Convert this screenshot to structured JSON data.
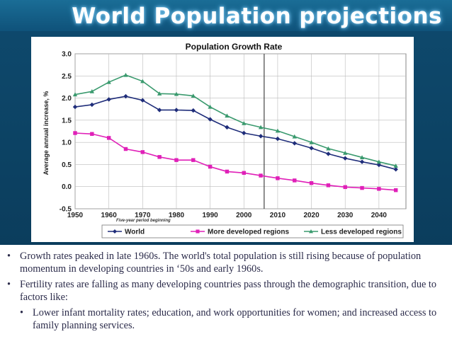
{
  "slide": {
    "title": "World Population projections"
  },
  "bullets": [
    {
      "text": "Growth rates peaked in late 1960s. The world's total population is still rising because of population momentum in developing countries in ‘50s and early 1960s.",
      "level": 1
    },
    {
      "text": "Fertility rates are falling as many developing countries pass through the demographic transition, due to factors like:",
      "level": 1
    },
    {
      "text": "Lower infant mortality rates; education, and work opportunities for women; and increased access to family planning services.",
      "level": 2
    }
  ],
  "colors": {
    "world": "#1f2d7a",
    "more_developed": "#e020b8",
    "less_developed": "#3a9a6e",
    "background": "#0e4a6e"
  },
  "chart_data": {
    "type": "line",
    "title": "Population Growth Rate",
    "xlabel": "Five-year period beginning",
    "ylabel": "Average annual increase, %",
    "x": [
      1950,
      1955,
      1960,
      1965,
      1970,
      1975,
      1980,
      1985,
      1990,
      1995,
      2000,
      2005,
      2010,
      2015,
      2020,
      2025,
      2030,
      2035,
      2040,
      2045
    ],
    "xticks": [
      "1950",
      "1960",
      "1970",
      "1980",
      "1990",
      "2000",
      "2010",
      "2020",
      "2030",
      "2040"
    ],
    "yticks": [
      "3.0",
      "2.5",
      "2.0",
      "1.5",
      "1.0",
      "0.5",
      "0.0",
      "-0.5"
    ],
    "xlim": [
      1950,
      2048
    ],
    "ylim": [
      -0.5,
      3.0
    ],
    "grid": true,
    "vertical_marker_x": 2006,
    "legend_position": "bottom",
    "series": [
      {
        "name": "World",
        "color": "#1f2d7a",
        "marker": "diamond",
        "values": [
          1.8,
          1.85,
          1.97,
          2.04,
          1.95,
          1.73,
          1.73,
          1.72,
          1.52,
          1.34,
          1.21,
          1.14,
          1.08,
          0.98,
          0.87,
          0.74,
          0.64,
          0.56,
          0.49,
          0.39
        ]
      },
      {
        "name": "More developed regions",
        "color": "#e020b8",
        "marker": "square",
        "values": [
          1.21,
          1.19,
          1.1,
          0.85,
          0.78,
          0.67,
          0.6,
          0.6,
          0.45,
          0.34,
          0.31,
          0.25,
          0.19,
          0.14,
          0.08,
          0.03,
          -0.01,
          -0.03,
          -0.05,
          -0.08
        ]
      },
      {
        "name": "Less developed regions",
        "color": "#3a9a6e",
        "marker": "triangle",
        "values": [
          2.08,
          2.15,
          2.36,
          2.52,
          2.38,
          2.1,
          2.09,
          2.05,
          1.8,
          1.6,
          1.43,
          1.34,
          1.26,
          1.13,
          1.0,
          0.86,
          0.76,
          0.66,
          0.56,
          0.47
        ]
      }
    ]
  }
}
